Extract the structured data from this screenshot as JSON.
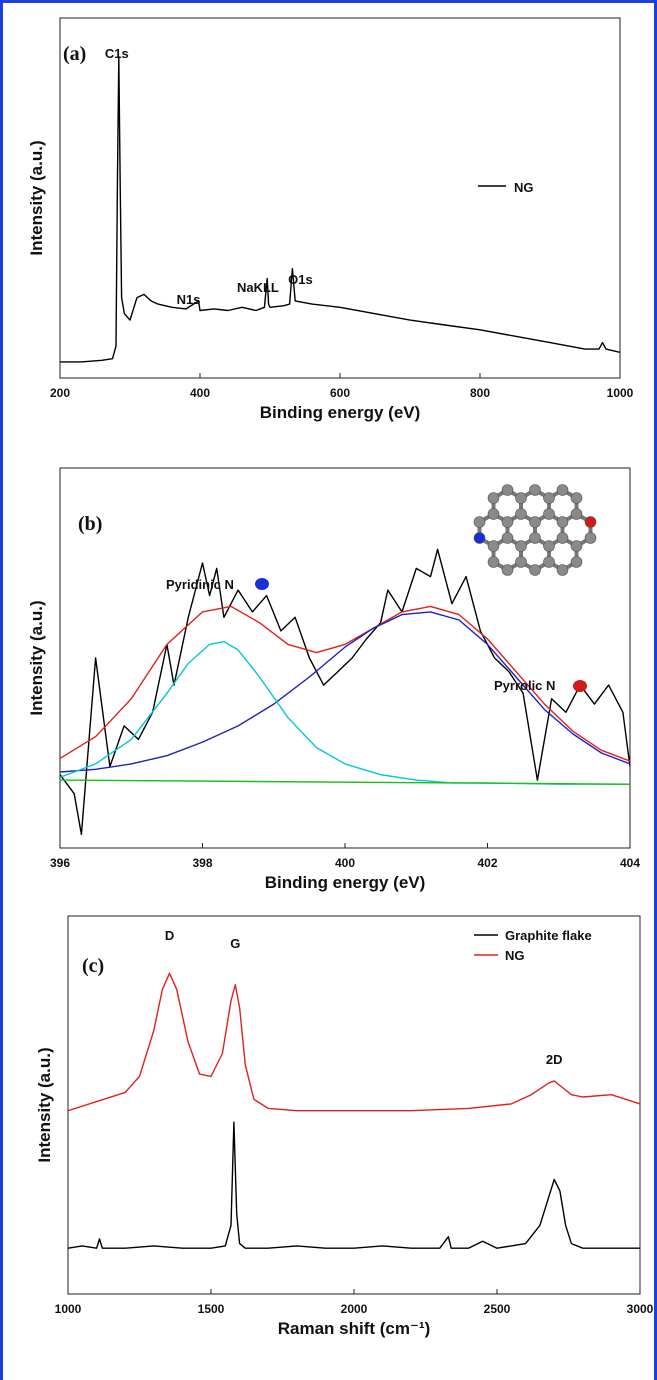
{
  "chart_data": [
    {
      "panel": "(a)",
      "type": "line",
      "xlabel": "Binding energy (eV)",
      "ylabel": "Intensity (a.u.)",
      "xlim": [
        200,
        1000
      ],
      "xticks": [
        200,
        400,
        600,
        800,
        1000
      ],
      "legend": [
        "NG"
      ],
      "annotations": [
        {
          "text": "C1s",
          "x": 284
        },
        {
          "text": "N1s",
          "x": 398
        },
        {
          "text": "NaKLL",
          "x": 497
        },
        {
          "text": "O1s",
          "x": 532
        }
      ],
      "series": [
        {
          "name": "NG",
          "color": "#000000",
          "x": [
            200,
            230,
            260,
            275,
            280,
            282,
            284,
            286,
            288,
            292,
            300,
            310,
            320,
            330,
            340,
            360,
            380,
            398,
            400,
            420,
            440,
            460,
            480,
            492,
            496,
            498,
            500,
            520,
            528,
            532,
            536,
            560,
            600,
            650,
            700,
            750,
            800,
            850,
            900,
            950,
            970,
            975,
            980,
            1000
          ],
          "y": [
            0.05,
            0.05,
            0.055,
            0.06,
            0.1,
            0.6,
            1.0,
            0.6,
            0.25,
            0.2,
            0.18,
            0.25,
            0.26,
            0.24,
            0.23,
            0.22,
            0.215,
            0.24,
            0.21,
            0.215,
            0.21,
            0.22,
            0.21,
            0.22,
            0.31,
            0.23,
            0.22,
            0.225,
            0.23,
            0.34,
            0.24,
            0.23,
            0.22,
            0.2,
            0.18,
            0.165,
            0.15,
            0.13,
            0.11,
            0.09,
            0.09,
            0.11,
            0.09,
            0.08
          ]
        }
      ]
    },
    {
      "panel": "(b)",
      "type": "line",
      "xlabel": "Binding energy (eV)",
      "ylabel": "Intensity (a.u.)",
      "xlim": [
        396,
        404
      ],
      "xticks": [
        396,
        398,
        400,
        402,
        404
      ],
      "annotations": [
        {
          "text": "Pyridinic N",
          "marker_color": "#1a2fd1"
        },
        {
          "text": "Pyrrolic N",
          "marker_color": "#d11a1a"
        }
      ],
      "series": [
        {
          "name": "",
          "color": "#000000",
          "x": [
            396.0,
            396.2,
            396.3,
            396.5,
            396.7,
            396.9,
            397.1,
            397.3,
            397.5,
            397.6,
            397.8,
            398.0,
            398.1,
            398.2,
            398.3,
            398.5,
            398.7,
            398.9,
            399.1,
            399.3,
            399.5,
            399.7,
            399.9,
            400.1,
            400.3,
            400.5,
            400.6,
            400.8,
            401.0,
            401.2,
            401.3,
            401.5,
            401.7,
            401.9,
            402.1,
            402.3,
            402.5,
            402.7,
            402.9,
            403.1,
            403.3,
            403.5,
            403.7,
            403.9,
            404.0
          ],
          "y": [
            0.12,
            0.05,
            -0.1,
            0.55,
            0.15,
            0.3,
            0.25,
            0.35,
            0.6,
            0.45,
            0.7,
            0.9,
            0.78,
            0.88,
            0.7,
            0.8,
            0.72,
            0.78,
            0.65,
            0.7,
            0.55,
            0.45,
            0.5,
            0.55,
            0.62,
            0.68,
            0.8,
            0.72,
            0.88,
            0.85,
            0.95,
            0.75,
            0.85,
            0.65,
            0.55,
            0.5,
            0.42,
            0.1,
            0.4,
            0.35,
            0.45,
            0.38,
            0.45,
            0.35,
            0.15
          ]
        },
        {
          "name": "",
          "color": "#e02020",
          "x": [
            396.0,
            396.5,
            397.0,
            397.5,
            398.0,
            398.4,
            398.8,
            399.2,
            399.6,
            400.0,
            400.4,
            400.8,
            401.2,
            401.6,
            402.0,
            402.4,
            402.8,
            403.2,
            403.6,
            404.0
          ],
          "y": [
            0.18,
            0.26,
            0.4,
            0.6,
            0.72,
            0.74,
            0.68,
            0.6,
            0.57,
            0.6,
            0.66,
            0.72,
            0.74,
            0.71,
            0.62,
            0.5,
            0.38,
            0.28,
            0.21,
            0.17
          ]
        },
        {
          "name": "",
          "color": "#2020c0",
          "x": [
            396.0,
            396.5,
            397.0,
            397.5,
            398.0,
            398.5,
            399.0,
            399.5,
            400.0,
            400.4,
            400.8,
            401.2,
            401.6,
            402.0,
            402.4,
            402.8,
            403.2,
            403.6,
            404.0
          ],
          "y": [
            0.13,
            0.14,
            0.16,
            0.19,
            0.24,
            0.3,
            0.38,
            0.48,
            0.59,
            0.66,
            0.71,
            0.72,
            0.69,
            0.6,
            0.48,
            0.36,
            0.27,
            0.2,
            0.16
          ]
        },
        {
          "name": "",
          "color": "#00c8d8",
          "x": [
            396.0,
            396.5,
            397.0,
            397.5,
            397.8,
            398.1,
            398.3,
            398.5,
            398.8,
            399.2,
            399.6,
            400.0,
            400.5,
            401.0,
            401.5,
            402.0,
            403.0,
            404.0
          ],
          "y": [
            0.11,
            0.16,
            0.25,
            0.42,
            0.53,
            0.6,
            0.61,
            0.58,
            0.48,
            0.33,
            0.22,
            0.16,
            0.12,
            0.1,
            0.09,
            0.09,
            0.085,
            0.085
          ]
        },
        {
          "name": "",
          "color": "#18c018",
          "x": [
            396.0,
            404.0
          ],
          "y": [
            0.1,
            0.085
          ]
        }
      ]
    },
    {
      "panel": "(c)",
      "type": "line",
      "xlabel": "Raman shift (cm⁻¹)",
      "ylabel": "Intensity (a.u.)",
      "xlim": [
        1000,
        3000
      ],
      "xticks": [
        1000,
        1500,
        2000,
        2500,
        3000
      ],
      "legend": [
        "Graphite flake",
        "NG"
      ],
      "annotations": [
        {
          "text": "D",
          "x": 1355
        },
        {
          "text": "G",
          "x": 1585
        },
        {
          "text": "2D",
          "x": 2700
        }
      ],
      "series": [
        {
          "name": "Graphite flake",
          "color": "#000000",
          "x": [
            1000,
            1050,
            1100,
            1110,
            1120,
            1200,
            1300,
            1400,
            1500,
            1550,
            1570,
            1580,
            1590,
            1600,
            1620,
            1700,
            1800,
            1900,
            2000,
            2100,
            2200,
            2300,
            2330,
            2340,
            2400,
            2450,
            2500,
            2550,
            2600,
            2650,
            2680,
            2700,
            2720,
            2740,
            2760,
            2800,
            2900,
            3000
          ],
          "y": [
            0.2,
            0.21,
            0.2,
            0.24,
            0.2,
            0.2,
            0.21,
            0.2,
            0.2,
            0.21,
            0.3,
            0.75,
            0.35,
            0.22,
            0.2,
            0.2,
            0.21,
            0.2,
            0.2,
            0.21,
            0.2,
            0.2,
            0.25,
            0.2,
            0.2,
            0.23,
            0.2,
            0.21,
            0.22,
            0.3,
            0.42,
            0.5,
            0.45,
            0.3,
            0.22,
            0.2,
            0.2,
            0.2
          ]
        },
        {
          "name": "NG",
          "color": "#e02020",
          "x": [
            1000,
            1100,
            1200,
            1250,
            1300,
            1330,
            1355,
            1380,
            1420,
            1460,
            1500,
            1540,
            1570,
            1585,
            1600,
            1620,
            1650,
            1700,
            1800,
            2000,
            2200,
            2400,
            2550,
            2620,
            2680,
            2700,
            2720,
            2760,
            2800,
            2900,
            2950,
            3000
          ],
          "y": [
            0.8,
            0.84,
            0.88,
            0.95,
            1.15,
            1.33,
            1.4,
            1.33,
            1.1,
            0.96,
            0.95,
            1.05,
            1.28,
            1.35,
            1.25,
            1.0,
            0.85,
            0.81,
            0.8,
            0.8,
            0.8,
            0.81,
            0.83,
            0.87,
            0.92,
            0.93,
            0.91,
            0.87,
            0.86,
            0.87,
            0.85,
            0.83
          ]
        }
      ]
    }
  ]
}
